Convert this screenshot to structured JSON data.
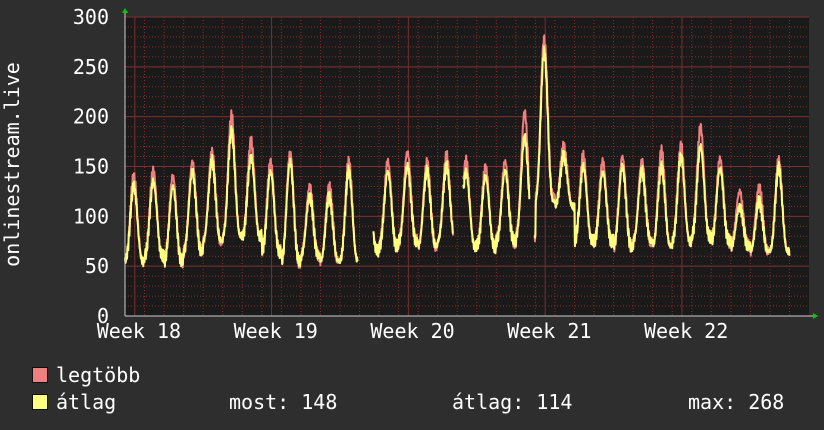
{
  "chart_data": {
    "type": "line",
    "ylabel": "onlinestream.live",
    "ylim": [
      0,
      300
    ],
    "yticks": [
      0,
      50,
      100,
      150,
      200,
      250,
      300
    ],
    "x_range_days": [
      0,
      35
    ],
    "xticks": [
      {
        "day": 0.5,
        "label": "Week 18"
      },
      {
        "day": 7.5,
        "label": "Week 19"
      },
      {
        "day": 14.5,
        "label": "Week 20"
      },
      {
        "day": 21.5,
        "label": "Week 21"
      },
      {
        "day": 28.5,
        "label": "Week 22"
      }
    ],
    "grid": true,
    "series": [
      {
        "name": "legtöbb",
        "color": "#f08080",
        "daily_peaks": [
          140,
          145,
          140,
          155,
          165,
          200,
          175,
          155,
          165,
          130,
          130,
          155,
          135,
          155,
          165,
          155,
          160,
          155,
          150,
          155,
          205,
          278,
          170,
          160,
          155,
          160,
          155,
          165,
          170,
          190,
          158,
          125,
          130,
          155
        ],
        "daily_lows": [
          55,
          60,
          55,
          65,
          75,
          80,
          80,
          65,
          55,
          60,
          55,
          55,
          65,
          70,
          75,
          70,
          75,
          70,
          70,
          75,
          80,
          120,
          110,
          75,
          75,
          70,
          75,
          70,
          75,
          80,
          75,
          70,
          65,
          65
        ]
      },
      {
        "name": "átlag",
        "color": "#ffff80",
        "daily_peaks": [
          130,
          135,
          130,
          145,
          155,
          185,
          160,
          145,
          155,
          120,
          120,
          145,
          125,
          145,
          150,
          145,
          150,
          145,
          140,
          145,
          180,
          265,
          160,
          150,
          145,
          150,
          145,
          150,
          160,
          170,
          148,
          110,
          115,
          148
        ],
        "daily_lows": [
          55,
          60,
          55,
          65,
          75,
          80,
          80,
          65,
          55,
          60,
          55,
          55,
          65,
          70,
          75,
          70,
          75,
          70,
          70,
          75,
          80,
          115,
          110,
          75,
          75,
          70,
          75,
          70,
          75,
          80,
          75,
          70,
          65,
          65
        ]
      }
    ],
    "gaps": [
      [
        11.9,
        12.7
      ],
      [
        16.8,
        17.3
      ],
      [
        20.7,
        20.95
      ]
    ]
  },
  "legend": {
    "max_label": "legtöbb",
    "avg_label": "átlag",
    "now": "most: 148",
    "average": "átlag: 114",
    "maximum": "max: 268"
  },
  "colors": {
    "background": "#2e2e2e",
    "plot_background": "#1a1a1a",
    "grid": "#8a2a2a",
    "axis": "#cccccc",
    "arrow": "#00cc00"
  }
}
